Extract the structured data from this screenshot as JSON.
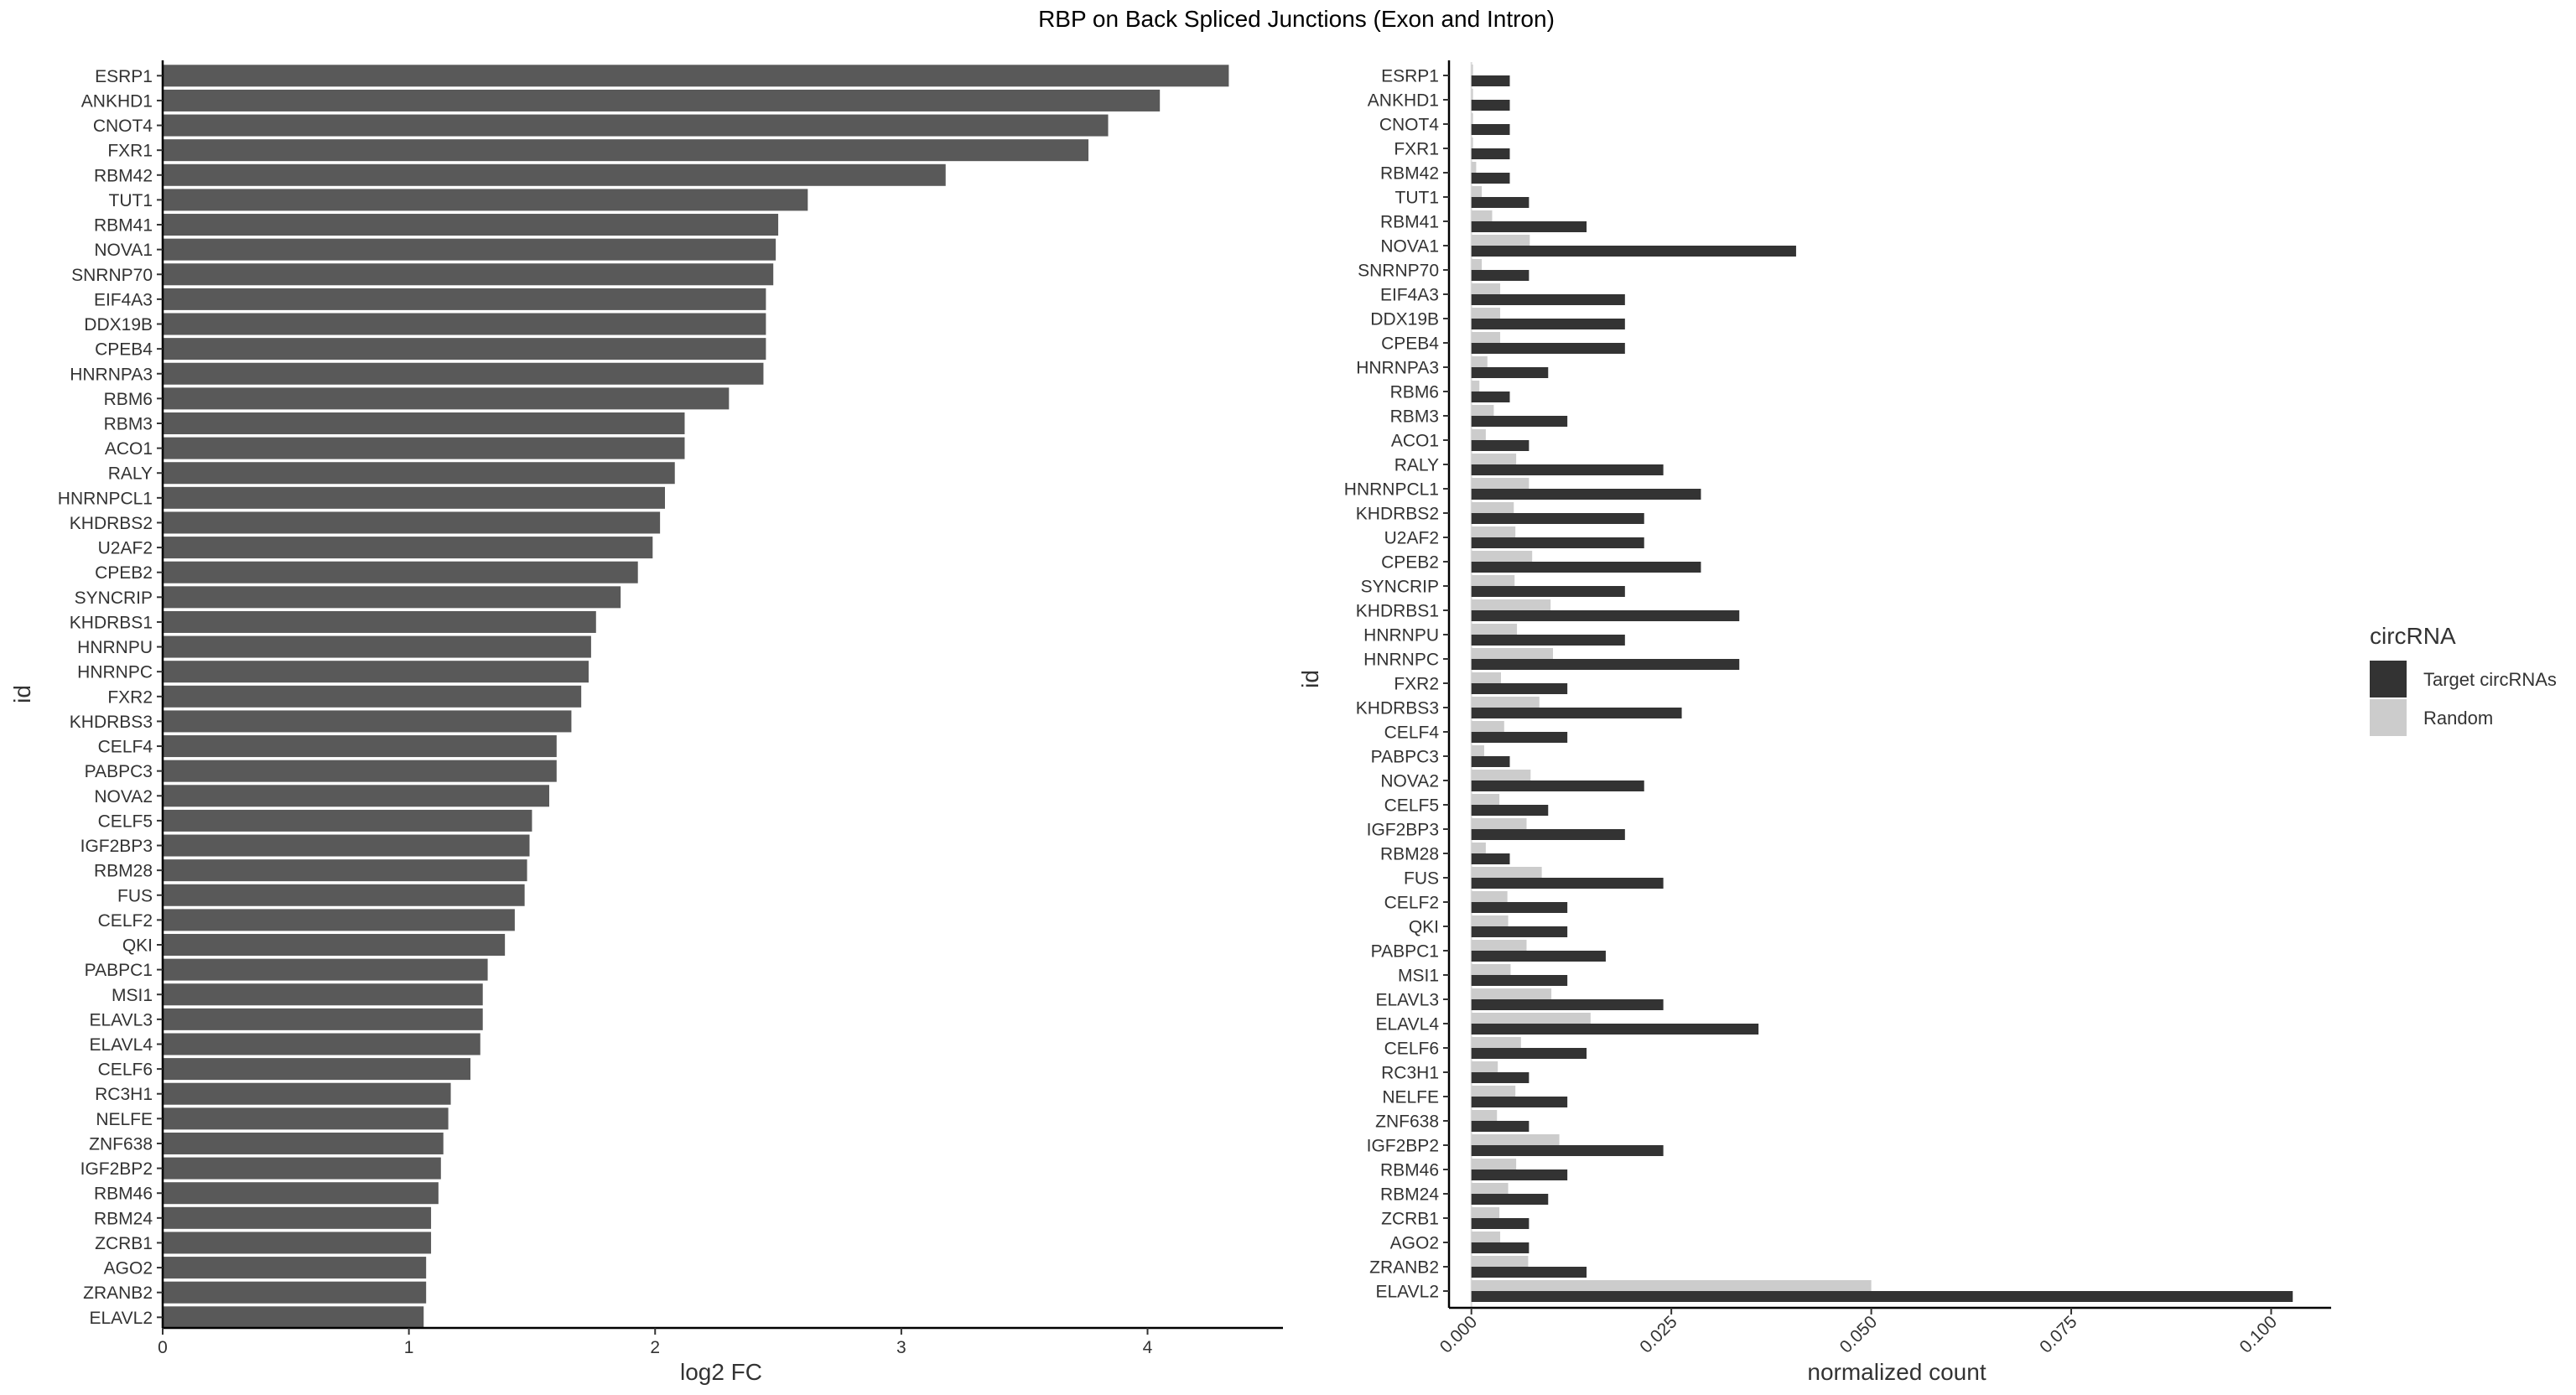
{
  "title": "RBP on Back Spliced Junctions (Exon and Intron)",
  "chart_data": [
    {
      "type": "bar",
      "orientation": "horizontal",
      "xlabel": "log2 FC",
      "ylabel": "id",
      "xlim": [
        0,
        4.55
      ],
      "xticks": [
        0,
        1,
        2,
        3,
        4
      ],
      "xtick_labels": [
        "0",
        "1",
        "2",
        "3",
        "4"
      ],
      "bar_color": "#595959",
      "categories": [
        "ESRP1",
        "ANKHD1",
        "CNOT4",
        "FXR1",
        "RBM42",
        "TUT1",
        "RBM41",
        "NOVA1",
        "SNRNP70",
        "EIF4A3",
        "DDX19B",
        "CPEB4",
        "HNRNPA3",
        "RBM6",
        "RBM3",
        "ACO1",
        "RALY",
        "HNRNPCL1",
        "KHDRBS2",
        "U2AF2",
        "CPEB2",
        "SYNCRIP",
        "KHDRBS1",
        "HNRNPU",
        "HNRNPC",
        "FXR2",
        "KHDRBS3",
        "CELF4",
        "PABPC3",
        "NOVA2",
        "CELF5",
        "IGF2BP3",
        "RBM28",
        "FUS",
        "CELF2",
        "QKI",
        "PABPC1",
        "MSI1",
        "ELAVL3",
        "ELAVL4",
        "CELF6",
        "RC3H1",
        "NELFE",
        "ZNF638",
        "IGF2BP2",
        "RBM46",
        "RBM24",
        "ZCRB1",
        "AGO2",
        "ZRANB2",
        "ELAVL2"
      ],
      "values": [
        4.33,
        4.05,
        3.84,
        3.76,
        3.18,
        2.62,
        2.5,
        2.49,
        2.48,
        2.45,
        2.45,
        2.45,
        2.44,
        2.3,
        2.12,
        2.12,
        2.08,
        2.04,
        2.02,
        1.99,
        1.93,
        1.86,
        1.76,
        1.74,
        1.73,
        1.7,
        1.66,
        1.6,
        1.6,
        1.57,
        1.5,
        1.49,
        1.48,
        1.47,
        1.43,
        1.39,
        1.32,
        1.3,
        1.3,
        1.29,
        1.25,
        1.17,
        1.16,
        1.14,
        1.13,
        1.12,
        1.09,
        1.09,
        1.07,
        1.07,
        1.06
      ]
    },
    {
      "type": "bar",
      "orientation": "horizontal",
      "xlabel": "normalized count",
      "ylabel": "id",
      "xlim": [
        -0.0028,
        0.1075
      ],
      "xticks": [
        0,
        0.025,
        0.05,
        0.075,
        0.1
      ],
      "xtick_labels": [
        "0.000",
        "0.025",
        "0.050",
        "0.075",
        "0.100"
      ],
      "legend": {
        "title": "circRNA",
        "position": "right",
        "entries": [
          {
            "name": "Target circRNAs",
            "color": "#333333"
          },
          {
            "name": "Random",
            "color": "#cccccc"
          }
        ]
      },
      "categories": [
        "ESRP1",
        "ANKHD1",
        "CNOT4",
        "FXR1",
        "RBM42",
        "TUT1",
        "RBM41",
        "NOVA1",
        "SNRNP70",
        "EIF4A3",
        "DDX19B",
        "CPEB4",
        "HNRNPA3",
        "RBM6",
        "RBM3",
        "ACO1",
        "RALY",
        "HNRNPCL1",
        "KHDRBS2",
        "U2AF2",
        "CPEB2",
        "SYNCRIP",
        "KHDRBS1",
        "HNRNPU",
        "HNRNPC",
        "FXR2",
        "KHDRBS3",
        "CELF4",
        "PABPC3",
        "NOVA2",
        "CELF5",
        "IGF2BP3",
        "RBM28",
        "FUS",
        "CELF2",
        "QKI",
        "PABPC1",
        "MSI1",
        "ELAVL3",
        "ELAVL4",
        "CELF6",
        "RC3H1",
        "NELFE",
        "ZNF638",
        "IGF2BP2",
        "RBM46",
        "RBM24",
        "ZCRB1",
        "AGO2",
        "ZRANB2",
        "ELAVL2"
      ],
      "series": [
        {
          "name": "Target circRNAs",
          "values": [
            0.0048,
            0.0048,
            0.0048,
            0.0048,
            0.0048,
            0.0072,
            0.0144,
            0.0406,
            0.0072,
            0.0192,
            0.0192,
            0.0192,
            0.0096,
            0.0048,
            0.012,
            0.0072,
            0.024,
            0.0287,
            0.0216,
            0.0216,
            0.0287,
            0.0192,
            0.0335,
            0.0192,
            0.0335,
            0.012,
            0.0263,
            0.012,
            0.0048,
            0.0216,
            0.0096,
            0.0192,
            0.0048,
            0.024,
            0.012,
            0.012,
            0.0168,
            0.012,
            0.024,
            0.0359,
            0.0144,
            0.0072,
            0.012,
            0.0072,
            0.024,
            0.012,
            0.0096,
            0.0072,
            0.0072,
            0.0144,
            0.1027
          ]
        },
        {
          "name": "Random",
          "values": [
            0.0002,
            0.0002,
            0.0002,
            0.0002,
            0.0006,
            0.0013,
            0.0026,
            0.0073,
            0.0013,
            0.0036,
            0.0036,
            0.0036,
            0.002,
            0.001,
            0.0028,
            0.0018,
            0.0056,
            0.0072,
            0.0053,
            0.0055,
            0.0076,
            0.0054,
            0.0099,
            0.0057,
            0.0102,
            0.0037,
            0.0085,
            0.0041,
            0.0016,
            0.0074,
            0.0035,
            0.0069,
            0.0018,
            0.0088,
            0.0045,
            0.0046,
            0.0069,
            0.0049,
            0.01,
            0.0149,
            0.0062,
            0.0033,
            0.0055,
            0.0032,
            0.011,
            0.0056,
            0.0046,
            0.0035,
            0.0036,
            0.0071,
            0.05
          ]
        }
      ]
    }
  ]
}
